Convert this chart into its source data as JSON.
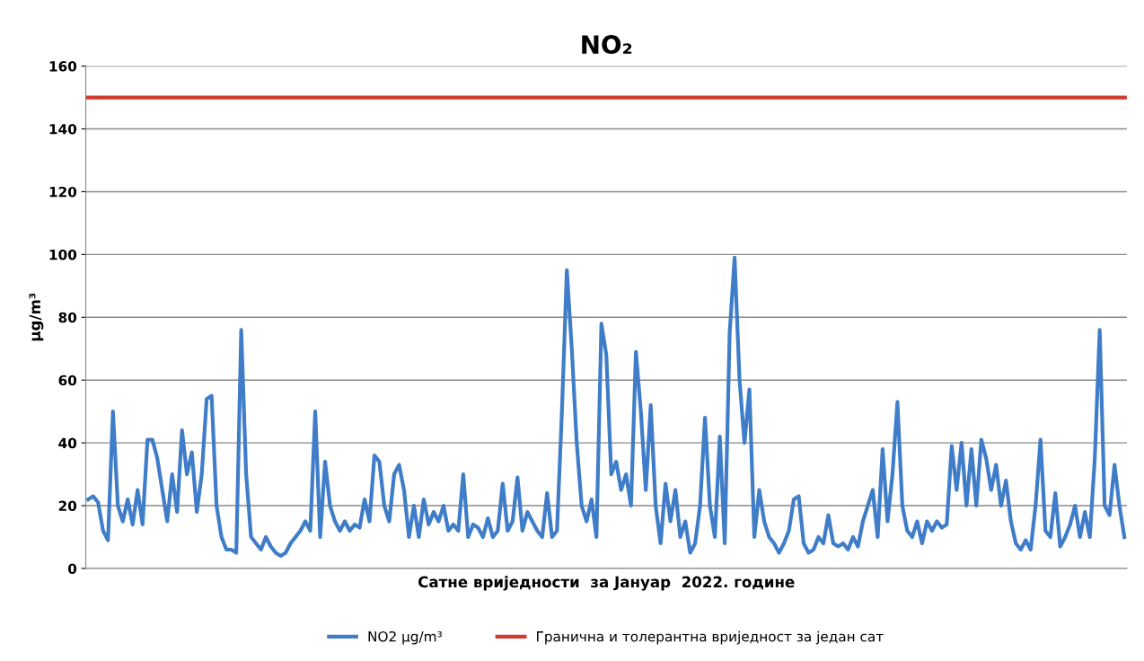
{
  "chart_data": {
    "type": "line",
    "title": "NO₂",
    "xlabel": "Сатне вриједности  за Јануар  2022. године",
    "ylabel": "µg/m³",
    "categories": [
      null,
      null,
      null,
      null,
      null,
      null,
      null,
      null,
      null,
      null,
      null,
      null,
      null,
      null,
      null,
      null,
      null,
      null,
      null,
      null,
      null,
      null,
      null,
      null,
      null,
      null,
      null,
      null,
      null,
      null,
      null,
      null,
      null,
      null,
      null,
      null,
      null,
      null,
      null,
      null,
      null,
      null,
      null,
      null,
      null,
      null,
      null,
      null,
      null,
      null,
      null,
      null,
      null,
      null,
      null,
      null,
      null,
      null,
      null,
      null,
      null,
      null,
      null,
      null,
      null,
      null,
      null,
      null,
      null,
      null,
      null,
      null,
      null,
      null,
      null,
      null,
      null,
      null,
      null,
      null,
      null,
      null,
      null,
      null,
      null,
      null,
      null,
      null,
      null,
      null,
      null,
      null,
      null,
      null,
      null,
      null,
      null,
      null,
      null,
      null,
      null,
      null,
      null,
      null,
      null,
      null,
      null,
      null,
      null,
      null,
      null,
      null,
      null,
      null,
      null,
      null,
      null,
      null,
      null,
      null,
      null,
      null,
      null,
      null,
      null,
      null,
      null,
      null,
      null,
      null,
      null,
      null,
      null,
      null,
      null,
      null,
      null,
      null,
      null,
      null,
      null,
      null,
      null,
      null,
      null,
      null,
      null,
      null,
      null,
      null,
      null,
      null,
      null,
      null,
      null,
      null,
      null,
      null,
      null,
      null,
      null,
      null,
      null,
      null,
      null,
      null,
      null,
      null,
      null,
      null,
      null,
      null,
      null,
      null,
      null,
      null,
      null,
      null,
      null,
      null,
      null,
      null,
      null,
      null,
      null,
      null,
      null,
      null,
      null,
      null,
      null,
      null,
      null,
      null,
      null,
      null,
      null,
      null,
      null,
      null,
      null,
      null,
      null,
      null,
      null,
      null,
      null,
      null,
      null,
      null,
      null
    ],
    "series": [
      {
        "name": "NO2 µg/m³",
        "color": "#3f7dc9",
        "values": [
          22,
          23,
          21,
          12,
          9,
          50,
          20,
          15,
          22,
          14,
          25,
          14,
          41,
          41,
          35,
          25,
          15,
          30,
          18,
          44,
          30,
          37,
          18,
          30,
          54,
          55,
          20,
          10,
          6,
          6,
          5,
          76,
          30,
          10,
          8,
          6,
          10,
          7,
          5,
          4,
          5,
          8,
          10,
          12,
          15,
          12,
          50,
          10,
          34,
          20,
          15,
          12,
          15,
          12,
          14,
          13,
          22,
          15,
          36,
          34,
          20,
          15,
          30,
          33,
          25,
          10,
          20,
          10,
          22,
          14,
          18,
          15,
          20,
          12,
          14,
          12,
          30,
          10,
          14,
          13,
          10,
          16,
          10,
          12,
          27,
          12,
          15,
          29,
          12,
          18,
          15,
          12,
          10,
          24,
          10,
          12,
          50,
          95,
          70,
          40,
          20,
          15,
          22,
          10,
          78,
          68,
          30,
          34,
          25,
          30,
          20,
          69,
          50,
          25,
          52,
          20,
          8,
          27,
          15,
          25,
          10,
          15,
          5,
          8,
          20,
          48,
          20,
          10,
          42,
          8,
          75,
          99,
          60,
          40,
          57,
          10,
          25,
          15,
          10,
          8,
          5,
          8,
          12,
          22,
          23,
          8,
          5,
          6,
          10,
          8,
          17,
          8,
          7,
          8,
          6,
          10,
          7,
          15,
          20,
          25,
          10,
          38,
          15,
          30,
          53,
          20,
          12,
          10,
          15,
          8,
          15,
          12,
          15,
          13,
          14,
          39,
          25,
          40,
          20,
          38,
          20,
          41,
          35,
          25,
          33,
          20,
          28,
          15,
          8,
          6,
          9,
          6,
          20,
          41,
          12,
          10,
          24,
          7,
          10,
          14,
          20,
          10,
          18,
          10,
          35,
          76,
          20,
          17,
          33,
          20,
          10
        ]
      }
    ],
    "ref_lines": [
      {
        "axis": "y",
        "value": 150,
        "label": "Гранична и толерантна вриједност за један сат",
        "color": "#d03a2f"
      }
    ],
    "ylim": [
      0,
      160
    ],
    "yticks": [
      0,
      20,
      40,
      60,
      80,
      100,
      120,
      140,
      160
    ],
    "grid": "y",
    "legend": "bottom",
    "tick_labels": "y",
    "marker": "none",
    "line_style": "solid"
  }
}
